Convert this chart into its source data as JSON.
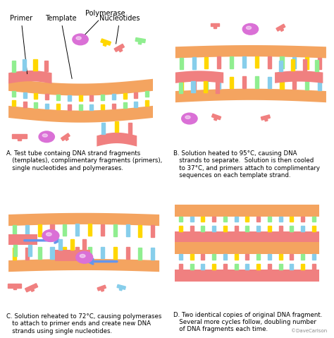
{
  "background_color": "#ffffff",
  "caption_A": "A. Test tube containg DNA strand fragments\n   (templates), complimentary fragments (primers),\n   single nucleotides and polymerases.",
  "caption_B": "B. Solution heated to 95°C, causing DNA\n   strands to separate.  Solution is then cooled\n   to 37°C, and primers attach to complimentary\n   sequences on each template strand.",
  "caption_C": "C. Solution reheated to 72°C, causing polymerases\n   to attach to primer ends and create new DNA\n   strands using single nucleotides.",
  "caption_D": "D. Two identical copies of original DNA fragment.\n   Several more cycles follow, doubling number\n   of DNA fragments each time.",
  "watermark": "©DaveCarlson",
  "backbone_color": "#f4a460",
  "primer_color": "#f08080",
  "nucleotide_colors": [
    "#90EE90",
    "#87CEEB",
    "#FFD700",
    "#f08080"
  ],
  "polymerase_color": "#DA70D6",
  "arrow_color": "#6495ED",
  "label_fontsize": 7.0,
  "caption_fontsize": 6.2
}
